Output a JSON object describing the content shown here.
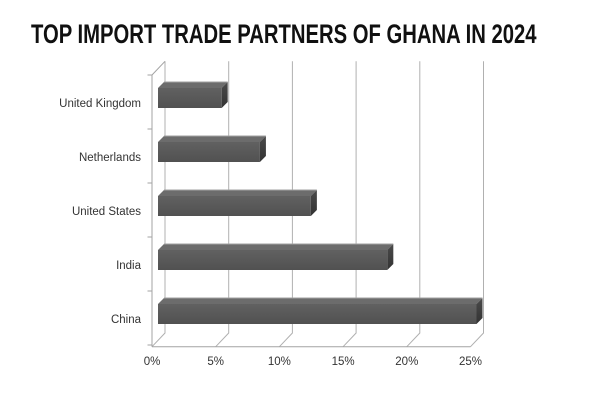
{
  "chart_data": {
    "type": "bar",
    "orientation": "horizontal",
    "style": "3d-bevel",
    "title": "TOP IMPORT TRADE PARTNERS OF GHANA IN 2024",
    "categories": [
      "United Kingdom",
      "Netherlands",
      "United States",
      "India",
      "China"
    ],
    "values": [
      5,
      8,
      12,
      18,
      25
    ],
    "unit": "%",
    "xlabel": "",
    "ylabel": "",
    "x_ticks": [
      "0%",
      "5%",
      "10%",
      "15%",
      "20%",
      "25%"
    ],
    "x_tick_values": [
      0,
      5,
      10,
      15,
      20,
      25
    ],
    "xlim": [
      0,
      25
    ],
    "grid": true,
    "legend": false,
    "colors": {
      "background": "#ffffff",
      "title_text": "#101010",
      "label_text": "#333333",
      "grid_line": "#b0b0b0",
      "axis_line": "#a3a3a3",
      "bar_front_light": "#616161",
      "bar_front_dark": "#515151",
      "bar_top": "#6c6c6c",
      "bar_top_edge": "#a2a2a2",
      "bar_side_light": "#4a4a4a",
      "bar_side_dark": "#333333"
    }
  }
}
